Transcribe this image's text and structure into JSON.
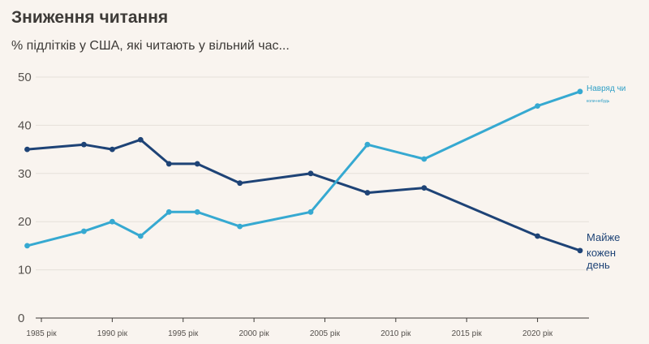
{
  "header": {
    "title": "Зниження читання",
    "subtitle": "% підлітків у США, які читають у вільний час..."
  },
  "colors": {
    "daily": "#1e4376",
    "never": "#36a9d1",
    "background": "#f9f4ef"
  },
  "chart_data": {
    "type": "line",
    "title": "Зниження читання",
    "subtitle": "% підлітків у США, які читають у вільний час...",
    "xlabel": "",
    "ylabel": "",
    "ylim": [
      0,
      50
    ],
    "xlim": [
      1984.6,
      2023.4
    ],
    "grid": true,
    "x_ticks": [
      "1985 рік",
      "1990 рік",
      "1995 рік",
      "2000 рік",
      "2005 рік",
      "2010 рік",
      "2015 рік",
      "2020 рік"
    ],
    "x_tick_values": [
      1985,
      1990,
      1995,
      2000,
      2005,
      2010,
      2015,
      2020
    ],
    "y_ticks": [
      "0",
      "10",
      "20",
      "30",
      "40",
      "50"
    ],
    "y_tick_values": [
      0,
      10,
      20,
      30,
      40,
      50
    ],
    "series": [
      {
        "name": "Майже кожен день",
        "label_lines": [
          "Майже",
          "кожен",
          "день"
        ],
        "color": "#1e4376",
        "x": [
          1984,
          1988,
          1990,
          1992,
          1994,
          1996,
          1999,
          2004,
          2008,
          2012,
          2020,
          2023
        ],
        "values": [
          35,
          36,
          35,
          37,
          32,
          32,
          28,
          30,
          26,
          27,
          17,
          14
        ]
      },
      {
        "name": "Навряд чи коли-небудь",
        "label_lines": [
          "Навряд чи",
          "коли-небудь"
        ],
        "color": "#36a9d1",
        "x": [
          1984,
          1988,
          1990,
          1992,
          1994,
          1996,
          1999,
          2004,
          2008,
          2012,
          2020,
          2023
        ],
        "values": [
          15,
          18,
          20,
          17,
          22,
          22,
          19,
          22,
          36,
          33,
          44,
          47
        ]
      }
    ]
  }
}
